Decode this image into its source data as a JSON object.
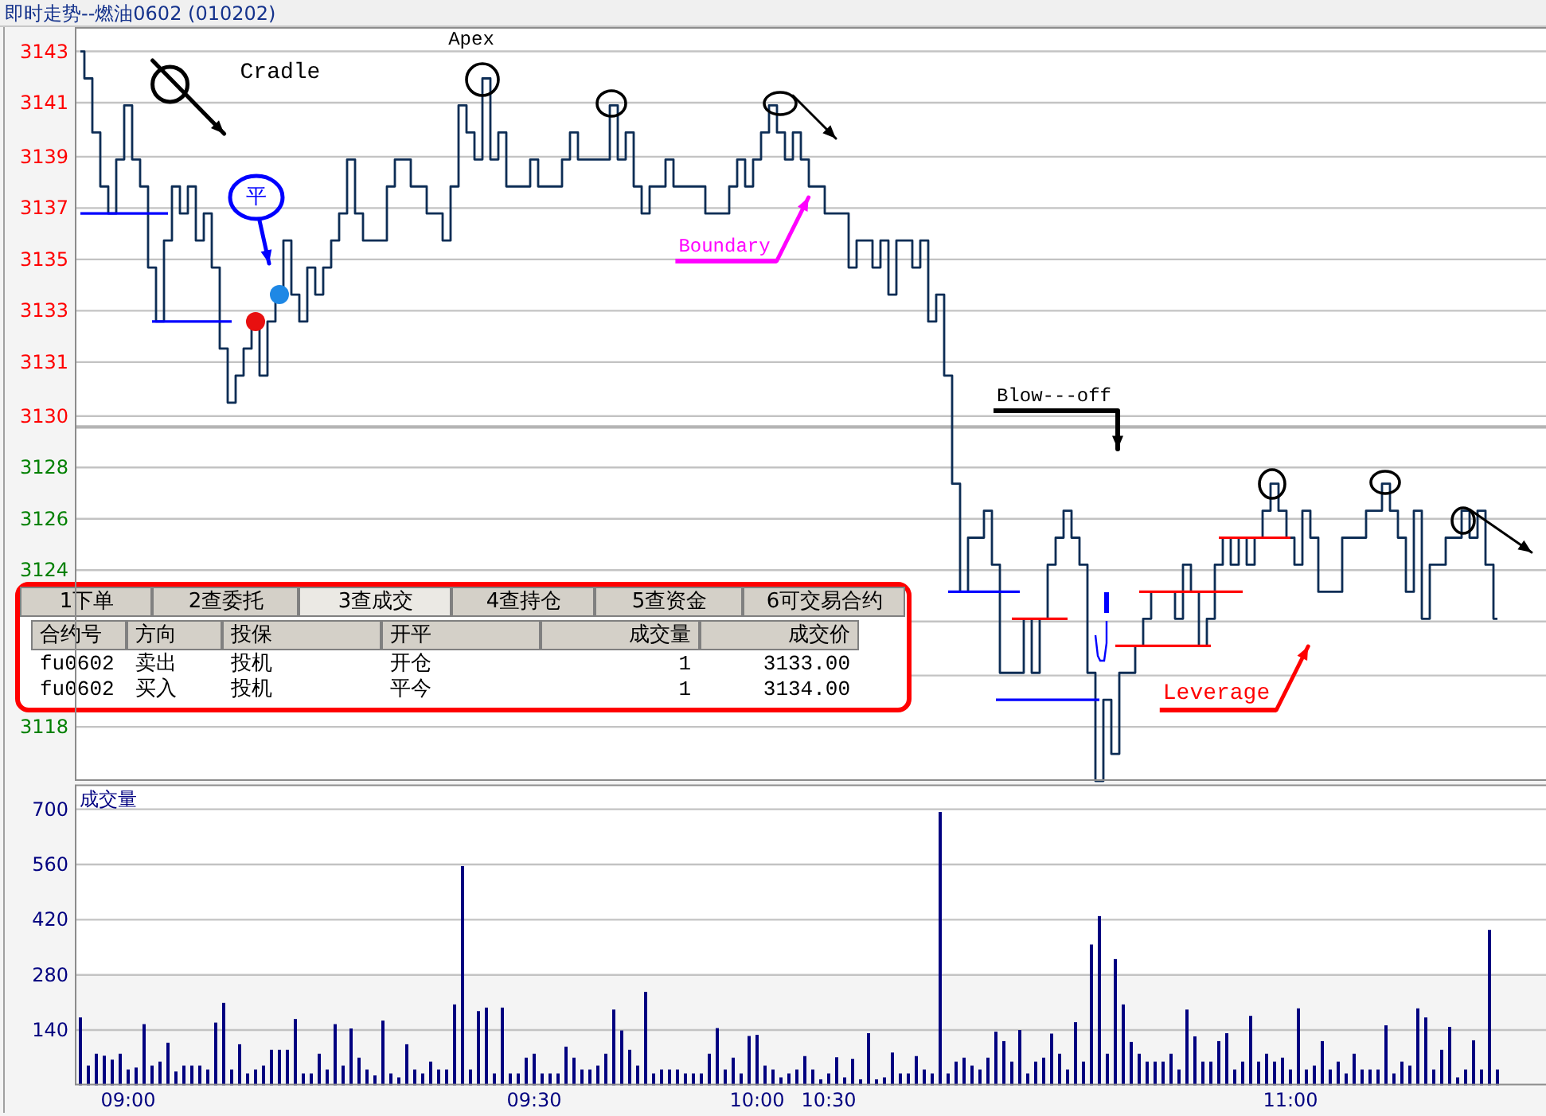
{
  "chart_data": [
    {
      "type": "step",
      "title": "即时走势--燃油0602 (010202)",
      "categories": [
        null,
        null,
        null,
        null,
        null,
        null,
        null,
        null,
        null,
        null,
        null,
        null,
        null,
        null,
        null,
        null,
        null,
        null,
        null,
        null,
        null,
        null,
        null,
        null,
        null,
        null,
        null,
        null,
        null,
        null,
        null,
        null,
        null,
        null,
        null,
        null,
        null,
        null,
        null,
        null,
        null,
        null,
        null,
        null,
        null,
        null,
        null,
        null,
        null,
        null,
        null,
        null,
        null,
        null,
        null,
        null,
        null,
        null,
        null,
        null,
        null,
        null,
        null,
        null,
        null,
        null,
        null,
        null,
        null,
        null,
        null,
        null,
        null,
        null,
        null,
        null,
        null,
        null,
        null,
        null,
        null,
        null,
        null,
        null,
        null,
        null,
        null,
        null,
        null,
        null,
        null,
        null,
        null,
        null,
        null,
        null,
        null,
        null,
        null,
        null,
        null,
        null,
        null,
        null,
        null,
        null,
        null,
        null,
        null,
        null,
        null,
        null,
        null,
        null,
        null,
        null,
        null,
        null,
        null,
        null,
        null,
        null,
        null,
        null,
        null,
        null,
        null,
        null,
        null,
        null,
        null,
        null,
        null,
        null,
        null,
        null,
        null,
        null,
        null,
        null,
        null,
        null,
        null,
        null,
        null,
        null,
        null,
        null,
        null,
        null,
        null,
        null,
        null,
        null,
        null,
        null,
        null,
        null,
        null,
        null,
        null,
        null,
        null,
        null,
        null,
        null,
        null,
        null,
        null,
        null,
        null,
        null,
        null,
        null,
        null,
        null,
        null,
        null,
        null
      ],
      "ylim": [
        3116.0,
        3143.9
      ],
      "yticks": [
        {
          "value": 3118.0,
          "label": "3118"
        },
        {
          "value": 3119.9,
          "label": null
        },
        {
          "value": 3121.9,
          "label": null
        },
        {
          "value": 3123.8,
          "label": "3124"
        },
        {
          "value": 3125.7,
          "label": "3126"
        },
        {
          "value": 3127.6,
          "label": "3128"
        },
        {
          "value": 3129.5,
          "label": "3130"
        },
        {
          "value": 3131.5,
          "label": "3131"
        },
        {
          "value": 3133.4,
          "label": "3133"
        },
        {
          "value": 3135.3,
          "label": "3135"
        },
        {
          "value": 3137.2,
          "label": "3137"
        },
        {
          "value": 3139.1,
          "label": "3139"
        },
        {
          "value": 3141.1,
          "label": "3141"
        },
        {
          "value": 3143.0,
          "label": "3143"
        }
      ],
      "tick_labels": "y",
      "grid": "y",
      "ref_lines": [
        {
          "axis": "y",
          "value": 3129.1,
          "color": "#b4b4b4"
        }
      ],
      "series": [
        {
          "color": "#0d2d55",
          "values": [
            3143,
            3142,
            3140,
            3138,
            3137,
            3139,
            3141,
            3139,
            3138,
            3135,
            3133,
            3136,
            3138,
            3137,
            3138,
            3136,
            3137,
            3135,
            3132,
            3130,
            3131,
            3132,
            3133,
            3131,
            3133,
            3134,
            3136,
            3134,
            3133,
            3135,
            3134,
            3135,
            3136,
            3137,
            3139,
            3137,
            3136,
            3136,
            3136,
            3138,
            3139,
            3139,
            3138,
            3138,
            3137,
            3137,
            3136,
            3138,
            3141,
            3140,
            3139,
            3142,
            3139,
            3140,
            3138,
            3138,
            3138,
            3139,
            3138,
            3138,
            3138,
            3139,
            3140,
            3139,
            3139,
            3139,
            3139,
            3141,
            3139,
            3140,
            3138,
            3137,
            3138,
            3138,
            3139,
            3138,
            3138,
            3138,
            3138,
            3137,
            3137,
            3137,
            3138,
            3139,
            3138,
            3139,
            3140,
            3141,
            3140,
            3139,
            3140,
            3139,
            3138,
            3138,
            3137,
            3137,
            3137,
            3135,
            3136,
            3136,
            3135,
            3136,
            3134,
            3136,
            3136,
            3135,
            3136,
            3133,
            3134,
            3131,
            3127,
            3123,
            3125,
            3125,
            3126,
            3124,
            3120,
            3120,
            3120,
            3122,
            3120,
            3122,
            3124,
            3125,
            3126,
            3125,
            3124,
            3120,
            3116,
            3119,
            3117,
            3120,
            3120,
            3121,
            3122,
            3123,
            3123,
            3123,
            3122,
            3124,
            3123,
            3121,
            3122,
            3124,
            3125,
            3124,
            3125,
            3124,
            3125,
            3126,
            3127,
            3126,
            3125,
            3124,
            3126,
            3125,
            3123,
            3123,
            3123,
            3125,
            3125,
            3125,
            3126,
            3126,
            3127,
            3126,
            3125,
            3123,
            3126,
            3122,
            3124,
            3124,
            3125,
            3125,
            3126,
            3125,
            3126,
            3124,
            3122
          ]
        },
        {
          "type": "line",
          "color": "#0000ff",
          "values": [
            3137,
            3137,
            3137,
            3137,
            3137,
            3137,
            3137,
            3137,
            3137,
            3137,
            3137,
            3137,
            null,
            null,
            null,
            null,
            null,
            null,
            null,
            null,
            null,
            null,
            null,
            null,
            null,
            null,
            null,
            null,
            null,
            null,
            null,
            null,
            null,
            null,
            null,
            null,
            null,
            null,
            null,
            null,
            null,
            null,
            null,
            null,
            null,
            null,
            null,
            null,
            null,
            null,
            null,
            null,
            null,
            null,
            null,
            null,
            null,
            null,
            null,
            null,
            null,
            null,
            null,
            null,
            null,
            null,
            null,
            null,
            null,
            null,
            null,
            null,
            null,
            null,
            null,
            null,
            null,
            null,
            null,
            null,
            null,
            null,
            null,
            null,
            null,
            null,
            null,
            null,
            null,
            null,
            null,
            null,
            null,
            null,
            null,
            null,
            null,
            null,
            null,
            null,
            null,
            null,
            null,
            null,
            null,
            null,
            null,
            null,
            null,
            3123,
            3123,
            3123,
            3123,
            3123,
            3123,
            3123,
            3123,
            3123,
            3123,
            null,
            null,
            null,
            null,
            null,
            null,
            null,
            null,
            null,
            null,
            null,
            null,
            null,
            null,
            null,
            null,
            null,
            null,
            null,
            null,
            null,
            null,
            null,
            null,
            null,
            null,
            null,
            null,
            null,
            null,
            null,
            null,
            null,
            null,
            null,
            null,
            null,
            null,
            null,
            null,
            null,
            null,
            null,
            null,
            null,
            null,
            null,
            null,
            null,
            null,
            null,
            null,
            null,
            null,
            null,
            null,
            null,
            null,
            null,
            null
          ]
        },
        {
          "type": "line",
          "color": "#0000ff",
          "values": [
            null,
            null,
            null,
            null,
            null,
            null,
            null,
            null,
            null,
            3133,
            3133,
            3133,
            3133,
            3133,
            3133,
            3133,
            3133,
            3133,
            3133,
            3133,
            null,
            null,
            null,
            null,
            null,
            null,
            null,
            null,
            null,
            null,
            null,
            null,
            null,
            null,
            null,
            null,
            null,
            null,
            null,
            null,
            null,
            null,
            null,
            null,
            null,
            null,
            null,
            null,
            null,
            null,
            null,
            null,
            null,
            null,
            null,
            null,
            null,
            null,
            null,
            null,
            null,
            null,
            null,
            null,
            null,
            null,
            null,
            null,
            null,
            null,
            null,
            null,
            null,
            null,
            null,
            null,
            null,
            null,
            null,
            null,
            null,
            null,
            null,
            null,
            null,
            null,
            null,
            null,
            null,
            null,
            null,
            null,
            null,
            null,
            null,
            null,
            null,
            null,
            null,
            null,
            null,
            null,
            null,
            null,
            null,
            null,
            null,
            null,
            null,
            null,
            null,
            null,
            null,
            null,
            null,
            3119,
            3119,
            3119,
            3119,
            3119,
            3119,
            3119,
            3119,
            3119,
            3119,
            3119,
            3119,
            3119,
            3119,
            null,
            null,
            null,
            null,
            null,
            null,
            null,
            null,
            null,
            null,
            null,
            null,
            null,
            null,
            null,
            null,
            null,
            null,
            null,
            null,
            null,
            null,
            null,
            null,
            null,
            null,
            null,
            null,
            null,
            null,
            null,
            null,
            null,
            null,
            null,
            null,
            null,
            null,
            null,
            null,
            null,
            null,
            null,
            null,
            null,
            null,
            null,
            null,
            null,
            null
          ]
        },
        {
          "type": "line",
          "color": "#ff0000",
          "values": [
            null,
            null,
            null,
            null,
            null,
            null,
            null,
            null,
            null,
            null,
            null,
            null,
            null,
            null,
            null,
            null,
            null,
            null,
            null,
            null,
            null,
            null,
            null,
            null,
            null,
            null,
            null,
            null,
            null,
            null,
            null,
            null,
            null,
            null,
            null,
            null,
            null,
            null,
            null,
            null,
            null,
            null,
            null,
            null,
            null,
            null,
            null,
            null,
            null,
            null,
            null,
            null,
            null,
            null,
            null,
            null,
            null,
            null,
            null,
            null,
            null,
            null,
            null,
            null,
            null,
            null,
            null,
            null,
            null,
            null,
            null,
            null,
            null,
            null,
            null,
            null,
            null,
            null,
            null,
            null,
            null,
            null,
            null,
            null,
            null,
            null,
            null,
            null,
            null,
            null,
            null,
            null,
            null,
            null,
            null,
            null,
            null,
            null,
            null,
            null,
            null,
            null,
            null,
            null,
            null,
            null,
            null,
            null,
            null,
            null,
            null,
            null,
            null,
            null,
            null,
            null,
            null,
            3122,
            3122,
            3122,
            3122,
            3122,
            3122,
            3122,
            3122,
            null,
            null,
            null,
            null,
            null,
            3121,
            3121,
            3121,
            3121,
            3121,
            3121,
            3121,
            3121,
            3121,
            3121,
            3121,
            3121,
            3121,
            null,
            null,
            null,
            null,
            null,
            null,
            null,
            null,
            null,
            null,
            null,
            null,
            null,
            null,
            null,
            null,
            null,
            null,
            null,
            null,
            null,
            null,
            null,
            null,
            null,
            null,
            null,
            null,
            null,
            null,
            null,
            null,
            null,
            null,
            null,
            null
          ]
        },
        {
          "type": "line",
          "color": "#ff0000",
          "values": [
            null,
            null,
            null,
            null,
            null,
            null,
            null,
            null,
            null,
            null,
            null,
            null,
            null,
            null,
            null,
            null,
            null,
            null,
            null,
            null,
            null,
            null,
            null,
            null,
            null,
            null,
            null,
            null,
            null,
            null,
            null,
            null,
            null,
            null,
            null,
            null,
            null,
            null,
            null,
            null,
            null,
            null,
            null,
            null,
            null,
            null,
            null,
            null,
            null,
            null,
            null,
            null,
            null,
            null,
            null,
            null,
            null,
            null,
            null,
            null,
            null,
            null,
            null,
            null,
            null,
            null,
            null,
            null,
            null,
            null,
            null,
            null,
            null,
            null,
            null,
            null,
            null,
            null,
            null,
            null,
            null,
            null,
            null,
            null,
            null,
            null,
            null,
            null,
            null,
            null,
            null,
            null,
            null,
            null,
            null,
            null,
            null,
            null,
            null,
            null,
            null,
            null,
            null,
            null,
            null,
            null,
            null,
            null,
            null,
            null,
            null,
            null,
            null,
            null,
            null,
            null,
            null,
            null,
            null,
            null,
            null,
            null,
            null,
            null,
            null,
            null,
            null,
            null,
            null,
            null,
            null,
            null,
            null,
            3123,
            3123,
            3123,
            3123,
            3123,
            3123,
            3123,
            3123,
            3123,
            3123,
            3123,
            3123,
            3123,
            3123,
            null,
            null,
            null,
            null,
            null,
            null,
            null,
            null,
            null,
            null,
            null,
            null,
            null,
            null,
            null,
            null,
            null,
            null,
            null,
            null,
            null,
            null,
            null,
            null,
            null,
            null,
            null,
            null,
            null,
            null,
            null,
            null
          ]
        },
        {
          "type": "line",
          "color": "#ff0000",
          "values": [
            null,
            null,
            null,
            null,
            null,
            null,
            null,
            null,
            null,
            null,
            null,
            null,
            null,
            null,
            null,
            null,
            null,
            null,
            null,
            null,
            null,
            null,
            null,
            null,
            null,
            null,
            null,
            null,
            null,
            null,
            null,
            null,
            null,
            null,
            null,
            null,
            null,
            null,
            null,
            null,
            null,
            null,
            null,
            null,
            null,
            null,
            null,
            null,
            null,
            null,
            null,
            null,
            null,
            null,
            null,
            null,
            null,
            null,
            null,
            null,
            null,
            null,
            null,
            null,
            null,
            null,
            null,
            null,
            null,
            null,
            null,
            null,
            null,
            null,
            null,
            null,
            null,
            null,
            null,
            null,
            null,
            null,
            null,
            null,
            null,
            null,
            null,
            null,
            null,
            null,
            null,
            null,
            null,
            null,
            null,
            null,
            null,
            null,
            null,
            null,
            null,
            null,
            null,
            null,
            null,
            null,
            null,
            null,
            null,
            null,
            null,
            null,
            null,
            null,
            null,
            null,
            null,
            null,
            null,
            null,
            null,
            null,
            null,
            null,
            null,
            null,
            null,
            null,
            null,
            null,
            null,
            null,
            null,
            null,
            null,
            null,
            null,
            null,
            null,
            null,
            null,
            null,
            null,
            3125,
            3125,
            3125,
            3125,
            3125,
            3125,
            3125,
            3125,
            3125,
            3125,
            null,
            null,
            null,
            null,
            null,
            null,
            null,
            null,
            null,
            null,
            null,
            null,
            null,
            null,
            null,
            null,
            null,
            null,
            null,
            null,
            null,
            null,
            null,
            null,
            null,
            null
          ]
        },
        {
          "type": "scatter",
          "color": "#e81010",
          "values": [
            null,
            null,
            null,
            null,
            null,
            null,
            null,
            null,
            null,
            null,
            null,
            null,
            null,
            null,
            null,
            null,
            null,
            null,
            null,
            null,
            null,
            null,
            3133,
            null,
            null,
            null,
            null,
            null,
            null,
            null,
            null,
            null,
            null,
            null,
            null,
            null,
            null,
            null,
            null,
            null,
            null,
            null,
            null,
            null,
            null,
            null,
            null,
            null,
            null,
            null,
            null,
            null,
            null,
            null,
            null,
            null,
            null,
            null,
            null,
            null,
            null,
            null,
            null,
            null,
            null,
            null,
            null,
            null,
            null,
            null,
            null,
            null,
            null,
            null,
            null,
            null,
            null,
            null,
            null,
            null,
            null,
            null,
            null,
            null,
            null,
            null,
            null,
            null,
            null,
            null,
            null,
            null,
            null,
            null,
            null,
            null,
            null,
            null,
            null,
            null,
            null,
            null,
            null,
            null,
            null,
            null,
            null,
            null,
            null,
            null,
            null,
            null,
            null,
            null,
            null,
            null,
            null,
            null,
            null,
            null,
            null,
            null,
            null,
            null,
            null,
            null,
            null,
            null,
            null,
            null,
            null,
            null,
            null,
            null,
            null,
            null,
            null,
            null,
            null,
            null,
            null,
            null,
            null,
            null,
            null,
            null,
            null,
            null,
            null,
            null,
            null,
            null,
            null,
            null,
            null,
            null,
            null,
            null,
            null,
            null,
            null,
            null,
            null,
            null,
            null,
            null,
            null,
            null,
            null,
            null,
            null,
            null,
            null,
            null,
            null,
            null,
            null,
            null,
            null
          ]
        },
        {
          "type": "scatter",
          "color": "#1e88e5",
          "values": [
            null,
            null,
            null,
            null,
            null,
            null,
            null,
            null,
            null,
            null,
            null,
            null,
            null,
            null,
            null,
            null,
            null,
            null,
            null,
            null,
            null,
            null,
            null,
            null,
            null,
            3134,
            null,
            null,
            null,
            null,
            null,
            null,
            null,
            null,
            null,
            null,
            null,
            null,
            null,
            null,
            null,
            null,
            null,
            null,
            null,
            null,
            null,
            null,
            null,
            null,
            null,
            null,
            null,
            null,
            null,
            null,
            null,
            null,
            null,
            null,
            null,
            null,
            null,
            null,
            null,
            null,
            null,
            null,
            null,
            null,
            null,
            null,
            null,
            null,
            null,
            null,
            null,
            null,
            null,
            null,
            null,
            null,
            null,
            null,
            null,
            null,
            null,
            null,
            null,
            null,
            null,
            null,
            null,
            null,
            null,
            null,
            null,
            null,
            null,
            null,
            null,
            null,
            null,
            null,
            null,
            null,
            null,
            null,
            null,
            null,
            null,
            null,
            null,
            null,
            null,
            null,
            null,
            null,
            null,
            null,
            null,
            null,
            null,
            null,
            null,
            null,
            null,
            null,
            null,
            null,
            null,
            null,
            null,
            null,
            null,
            null,
            null,
            null,
            null,
            null,
            null,
            null,
            null,
            null,
            null,
            null,
            null,
            null,
            null,
            null,
            null,
            null,
            null,
            null,
            null,
            null,
            null,
            null,
            null,
            null,
            null,
            null,
            null,
            null,
            null,
            null,
            null,
            null,
            null,
            null,
            null,
            null,
            null,
            null,
            null,
            null,
            null,
            null,
            null
          ]
        }
      ],
      "annotations": [
        "Cradle",
        "Apex",
        "Boundary",
        "Blow---off",
        "Leverage",
        "平",
        "1下单",
        "2查委托",
        "3查成交",
        "4查持仓",
        "5查资金",
        "6可交易合约",
        "合约号",
        "方向",
        "投保",
        "开平",
        "成交量",
        "成交价",
        "fu0602",
        "卖出",
        "投机",
        "开仓",
        "1",
        "3133.00",
        "fu0602",
        "买入",
        "投机",
        "平今",
        "1",
        "3134.00"
      ]
    },
    {
      "type": "bar",
      "title": "成交量",
      "categories": [
        null,
        null,
        null,
        null,
        null,
        null,
        "09:00",
        null,
        null,
        null,
        null,
        null,
        null,
        null,
        null,
        null,
        null,
        null,
        null,
        null,
        null,
        null,
        null,
        null,
        null,
        null,
        null,
        null,
        null,
        null,
        null,
        null,
        null,
        null,
        null,
        null,
        null,
        null,
        null,
        null,
        null,
        null,
        null,
        null,
        null,
        null,
        null,
        null,
        null,
        null,
        null,
        null,
        null,
        null,
        null,
        null,
        null,
        "09:30",
        null,
        null,
        null,
        null,
        null,
        null,
        null,
        null,
        null,
        null,
        null,
        null,
        null,
        null,
        null,
        null,
        null,
        null,
        null,
        null,
        null,
        null,
        null,
        null,
        null,
        null,
        null,
        "10:00",
        null,
        null,
        null,
        null,
        null,
        null,
        null,
        null,
        "10:30",
        null,
        null,
        null,
        null,
        null,
        null,
        null,
        null,
        null,
        null,
        null,
        null,
        null,
        null,
        null,
        null,
        null,
        null,
        null,
        null,
        null,
        null,
        null,
        null,
        null,
        null,
        null,
        null,
        null,
        null,
        null,
        null,
        null,
        null,
        null,
        null,
        null,
        null,
        null,
        null,
        null,
        null,
        null,
        null,
        null,
        null,
        null,
        null,
        null,
        null,
        null,
        null,
        null,
        null,
        null,
        null,
        null,
        "11:00",
        null,
        null,
        null,
        null,
        null,
        null,
        null,
        null,
        null,
        null,
        null,
        null,
        null,
        null,
        null,
        null,
        null,
        null,
        null,
        null,
        null,
        null,
        null,
        null,
        null,
        null
      ],
      "ylim": [
        0,
        763
      ],
      "yticks": [
        140,
        280,
        420,
        560,
        700
      ],
      "grid": "y",
      "bands": [
        {
          "axis": "y",
          "from": 0,
          "to": 280,
          "color": "#f4f4f4"
        }
      ],
      "series": [
        {
          "color": "#000080",
          "values": [
            172,
            50,
            80,
            75,
            65,
            80,
            40,
            45,
            155,
            50,
            60,
            108,
            35,
            50,
            50,
            50,
            40,
            159,
            209,
            40,
            104,
            30,
            40,
            50,
            90,
            90,
            90,
            168,
            30,
            30,
            80,
            40,
            155,
            50,
            144,
            70,
            40,
            25,
            164,
            30,
            20,
            104,
            40,
            30,
            60,
            40,
            40,
            205,
            556,
            40,
            188,
            197,
            30,
            197,
            30,
            30,
            70,
            80,
            30,
            30,
            30,
            98,
            70,
            40,
            40,
            50,
            80,
            192,
            139,
            90,
            50,
            237,
            30,
            40,
            40,
            40,
            30,
            30,
            30,
            80,
            145,
            40,
            70,
            30,
            125,
            128,
            50,
            40,
            20,
            30,
            40,
            74,
            40,
            15,
            30,
            71,
            20,
            67,
            15,
            132,
            15,
            20,
            83,
            30,
            30,
            74,
            40,
            30,
            693,
            30,
            60,
            70,
            50,
            40,
            70,
            136,
            112,
            60,
            140,
            30,
            60,
            70,
            131,
            80,
            40,
            160,
            60,
            357,
            429,
            80,
            320,
            205,
            110,
            80,
            60,
            60,
            60,
            80,
            40,
            192,
            124,
            60,
            60,
            112,
            132,
            40,
            60,
            176,
            60,
            80,
            60,
            70,
            40,
            195,
            40,
            50,
            112,
            40,
            60,
            30,
            80,
            40,
            40,
            40,
            152,
            30,
            60,
            50,
            195,
            172,
            40,
            90,
            148,
            20,
            40,
            114,
            40,
            394,
            40
          ]
        }
      ]
    }
  ]
}
